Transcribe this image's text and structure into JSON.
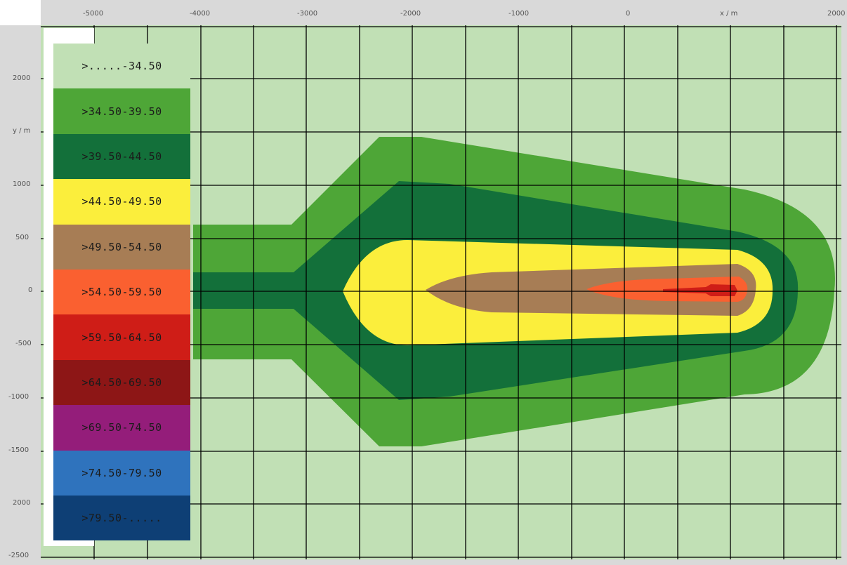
{
  "x_axis": {
    "tick_labels": [
      "-5000",
      "-4000",
      "-3000",
      "-2000",
      "-1000",
      "0",
      "x / m",
      "2000"
    ]
  },
  "y_axis": {
    "tick_labels": [
      "2000",
      "y / m",
      "1000",
      "500",
      "0",
      "-500",
      "-1000",
      "-1500",
      "2000",
      "-2500"
    ]
  },
  "legend": {
    "items": [
      {
        "label": ">.....-34.50",
        "color": "#c1e0b5"
      },
      {
        "label": ">34.50-39.50",
        "color": "#4ea637"
      },
      {
        "label": ">39.50-44.50",
        "color": "#13703a"
      },
      {
        "label": ">44.50-49.50",
        "color": "#fbee3c"
      },
      {
        "label": ">49.50-54.50",
        "color": "#a77d55"
      },
      {
        "label": ">54.50-59.50",
        "color": "#fa6030"
      },
      {
        "label": ">59.50-64.50",
        "color": "#cf1d17"
      },
      {
        "label": ">64.50-69.50",
        "color": "#8d1616"
      },
      {
        "label": ">69.50-74.50",
        "color": "#941d7a"
      },
      {
        "label": ">74.50-79.50",
        "color": "#2f73bd"
      },
      {
        "label": ">79.50-.....",
        "color": "#0e3f75"
      }
    ]
  },
  "map": {
    "background_color": "#c1e0b5",
    "grid_color": "#000000",
    "contour_colors": [
      "#4ea637",
      "#13703a",
      "#fbee3c",
      "#a77d55",
      "#fa6030",
      "#cf1d17"
    ]
  }
}
